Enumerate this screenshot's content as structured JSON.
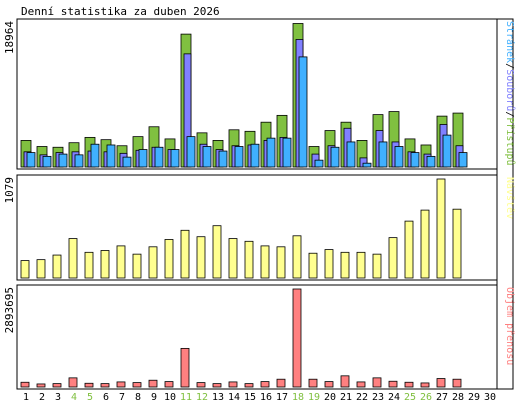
{
  "title": "Denní statistika za duben 2026",
  "colors": {
    "hits": "#80c040",
    "files": "#8080ff",
    "pages": "#40b0ff",
    "visits": "#ffff90",
    "kbytes": "#ff8080",
    "weekend": "#80c040",
    "text": "#000000"
  },
  "chart_data": [
    {
      "type": "bar",
      "panel": "hits-files-pages",
      "categories": [
        "1",
        "2",
        "3",
        "4",
        "5",
        "6",
        "7",
        "8",
        "9",
        "10",
        "11",
        "12",
        "13",
        "14",
        "15",
        "16",
        "17",
        "18",
        "19",
        "20",
        "21",
        "22",
        "23",
        "24",
        "25",
        "26",
        "27",
        "28",
        "29",
        "30"
      ],
      "weekend_days": [
        "4",
        "5",
        "11",
        "12",
        "18",
        "19",
        "25",
        "26"
      ],
      "ymax_label": "18964",
      "ylim": [
        0,
        18964
      ],
      "legend_words": [
        "Stránek",
        "Souborů",
        "Přístupů"
      ],
      "legend_separator": "/",
      "series": [
        {
          "name": "Přístupů",
          "color": "#80c040",
          "values": [
            3500,
            2700,
            2600,
            3200,
            3900,
            3600,
            2800,
            4000,
            5300,
            3700,
            17500,
            4500,
            3500,
            4900,
            4700,
            5900,
            6800,
            18900,
            2700,
            4800,
            5900,
            3500,
            6900,
            7300,
            3700,
            2900,
            6700,
            7100,
            0,
            0
          ]
        },
        {
          "name": "Souborů",
          "color": "#8080ff",
          "values": [
            2000,
            1600,
            1900,
            2000,
            2100,
            2000,
            1800,
            2200,
            2600,
            2300,
            14900,
            3000,
            2300,
            2800,
            2900,
            3500,
            3900,
            16800,
            1700,
            2800,
            5100,
            1200,
            4800,
            3300,
            2000,
            1700,
            5600,
            2800,
            0,
            0
          ]
        },
        {
          "name": "Stránek",
          "color": "#40b0ff",
          "values": [
            1900,
            1400,
            1700,
            1600,
            3000,
            2900,
            1300,
            2300,
            2600,
            2300,
            4000,
            2700,
            2100,
            2700,
            3000,
            3800,
            3800,
            14500,
            900,
            2600,
            3300,
            500,
            3300,
            2700,
            1900,
            1400,
            4200,
            1900,
            0,
            0
          ]
        }
      ]
    },
    {
      "type": "bar",
      "panel": "visits",
      "categories": [
        "1",
        "2",
        "3",
        "4",
        "5",
        "6",
        "7",
        "8",
        "9",
        "10",
        "11",
        "12",
        "13",
        "14",
        "15",
        "16",
        "17",
        "18",
        "19",
        "20",
        "21",
        "22",
        "23",
        "24",
        "25",
        "26",
        "27",
        "28",
        "29",
        "30"
      ],
      "ymax_label": "1079",
      "ylim": [
        0,
        1079
      ],
      "legend_words": [
        "Návštěv"
      ],
      "series": [
        {
          "name": "Návštěv",
          "color": "#ffff90",
          "values": [
            190,
            200,
            250,
            430,
            280,
            300,
            350,
            260,
            340,
            420,
            520,
            450,
            570,
            430,
            400,
            350,
            340,
            460,
            270,
            310,
            280,
            280,
            260,
            440,
            620,
            740,
            1079,
            750,
            0,
            0
          ]
        }
      ]
    },
    {
      "type": "bar",
      "panel": "kbytes",
      "categories": [
        "1",
        "2",
        "3",
        "4",
        "5",
        "6",
        "7",
        "8",
        "9",
        "10",
        "11",
        "12",
        "13",
        "14",
        "15",
        "16",
        "17",
        "18",
        "19",
        "20",
        "21",
        "22",
        "23",
        "24",
        "25",
        "26",
        "27",
        "28",
        "29",
        "30"
      ],
      "ymax_label": "2893695",
      "ylim": [
        0,
        2893695
      ],
      "legend_words": [
        "Objem přenosu"
      ],
      "series": [
        {
          "name": "Objem přenosu",
          "color": "#ff8080",
          "values": [
            140000,
            90000,
            100000,
            270000,
            110000,
            100000,
            150000,
            130000,
            200000,
            160000,
            1140000,
            130000,
            100000,
            150000,
            100000,
            160000,
            230000,
            2893695,
            230000,
            160000,
            330000,
            150000,
            270000,
            170000,
            140000,
            120000,
            250000,
            230000,
            0,
            0
          ]
        }
      ]
    }
  ]
}
